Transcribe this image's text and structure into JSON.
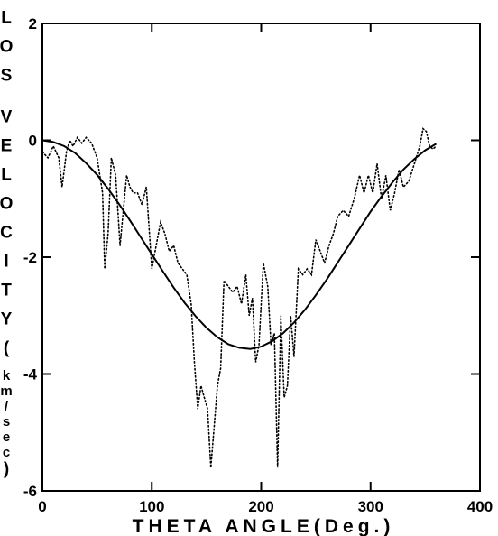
{
  "chart_data": {
    "type": "line",
    "title": "",
    "xlabel": "THETA ANGLE(Deg.)",
    "ylabel": "LOS VELOCITY(km/sec)",
    "xlim": [
      0,
      400
    ],
    "ylim": [
      -6,
      2
    ],
    "x_ticks": [
      0,
      100,
      200,
      300,
      400
    ],
    "y_ticks": [
      2,
      0,
      -2,
      -4,
      -6
    ],
    "grid": false,
    "legend": "none",
    "colors": {
      "axes": "#000000",
      "line": "#000000",
      "background": "#ffffff"
    },
    "series": [
      {
        "style": "solid",
        "x": [
          0,
          10,
          20,
          30,
          40,
          50,
          60,
          70,
          80,
          90,
          100,
          110,
          120,
          130,
          140,
          150,
          160,
          170,
          180,
          190,
          200,
          210,
          220,
          230,
          240,
          250,
          260,
          270,
          280,
          290,
          300,
          310,
          320,
          330,
          340,
          350,
          360
        ],
        "y": [
          0.0,
          -0.03,
          -0.1,
          -0.22,
          -0.39,
          -0.59,
          -0.83,
          -1.09,
          -1.37,
          -1.66,
          -1.95,
          -2.24,
          -2.52,
          -2.78,
          -3.01,
          -3.21,
          -3.37,
          -3.49,
          -3.55,
          -3.57,
          -3.53,
          -3.44,
          -3.3,
          -3.12,
          -2.9,
          -2.65,
          -2.38,
          -2.09,
          -1.8,
          -1.51,
          -1.22,
          -0.96,
          -0.72,
          -0.5,
          -0.32,
          -0.17,
          -0.06
        ]
      },
      {
        "style": "dotted",
        "x": [
          0,
          5,
          10,
          15,
          18,
          22,
          25,
          28,
          32,
          36,
          40,
          45,
          50,
          55,
          57,
          60,
          63,
          67,
          71,
          74,
          77,
          80,
          83,
          87,
          91,
          95,
          100,
          104,
          108,
          112,
          116,
          120,
          124,
          128,
          132,
          136,
          139,
          142,
          145,
          148,
          151,
          154,
          157,
          160,
          163,
          166,
          170,
          174,
          178,
          182,
          186,
          189,
          192,
          195,
          198,
          202,
          206,
          209,
          212,
          215,
          218,
          221,
          224,
          227,
          230,
          234,
          238,
          242,
          246,
          250,
          254,
          258,
          262,
          266,
          270,
          275,
          280,
          285,
          290,
          294,
          298,
          302,
          306,
          310,
          314,
          318,
          322,
          326,
          330,
          335,
          340,
          345,
          348,
          351,
          354,
          357,
          360
        ],
        "y": [
          -0.2,
          -0.3,
          -0.1,
          -0.3,
          -0.8,
          -0.2,
          0.0,
          -0.1,
          0.05,
          -0.05,
          0.05,
          -0.05,
          -0.3,
          -0.9,
          -2.2,
          -1.6,
          -0.3,
          -0.6,
          -1.8,
          -1.2,
          -0.6,
          -0.8,
          -0.9,
          -0.9,
          -1.1,
          -0.8,
          -2.2,
          -1.8,
          -1.4,
          -1.6,
          -1.9,
          -1.8,
          -2.1,
          -2.2,
          -2.3,
          -2.8,
          -3.8,
          -4.6,
          -4.2,
          -4.4,
          -4.6,
          -5.6,
          -4.9,
          -4.2,
          -3.9,
          -2.4,
          -2.5,
          -2.6,
          -2.5,
          -2.8,
          -2.3,
          -3.0,
          -2.7,
          -3.8,
          -3.5,
          -2.1,
          -2.5,
          -3.5,
          -3.3,
          -5.6,
          -3.0,
          -4.4,
          -4.2,
          -3.0,
          -3.7,
          -2.2,
          -2.3,
          -2.2,
          -2.3,
          -1.7,
          -1.9,
          -2.1,
          -1.8,
          -1.6,
          -1.3,
          -1.2,
          -1.3,
          -1.0,
          -0.6,
          -0.9,
          -0.6,
          -0.9,
          -0.4,
          -1.0,
          -0.6,
          -1.2,
          -0.9,
          -0.5,
          -0.8,
          -0.7,
          -0.4,
          -0.1,
          0.2,
          0.15,
          -0.1,
          -0.15,
          -0.1
        ]
      }
    ]
  }
}
